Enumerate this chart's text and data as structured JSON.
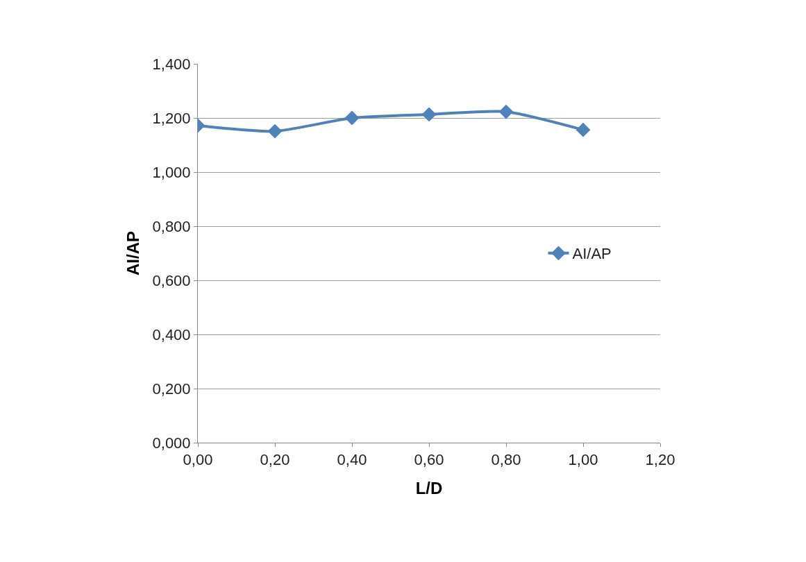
{
  "chart_data": {
    "type": "line",
    "xlabel": "L/D",
    "ylabel": "AI/AP",
    "x": [
      0,
      0.2,
      0.4,
      0.6,
      0.8,
      1.0
    ],
    "series": [
      {
        "name": "AI/AP",
        "color": "#4f81bd",
        "values": [
          1.172,
          1.151,
          1.2,
          1.213,
          1.223,
          1.156
        ]
      }
    ],
    "xlim": [
      0,
      1.2
    ],
    "xticks": [
      {
        "value": 0,
        "label": "0,00"
      },
      {
        "value": 0.2,
        "label": "0,20"
      },
      {
        "value": 0.4,
        "label": "0,40"
      },
      {
        "value": 0.6,
        "label": "0,60"
      },
      {
        "value": 0.8,
        "label": "0,80"
      },
      {
        "value": 1.0,
        "label": "1,00"
      },
      {
        "value": 1.2,
        "label": "1,20"
      }
    ],
    "ylim": [
      0,
      1.4
    ],
    "yticks": [
      {
        "value": 0,
        "label": "0,000"
      },
      {
        "value": 0.2,
        "label": "0,200"
      },
      {
        "value": 0.4,
        "label": "0,400"
      },
      {
        "value": 0.6,
        "label": "0,600"
      },
      {
        "value": 0.8,
        "label": "0,800"
      },
      {
        "value": 1.0,
        "label": "1,000"
      },
      {
        "value": 1.2,
        "label": "1,200"
      },
      {
        "value": 1.4,
        "label": "1,400"
      }
    ],
    "grid": "y",
    "legend": "right",
    "marker": "diamond",
    "line_style": "solid"
  }
}
